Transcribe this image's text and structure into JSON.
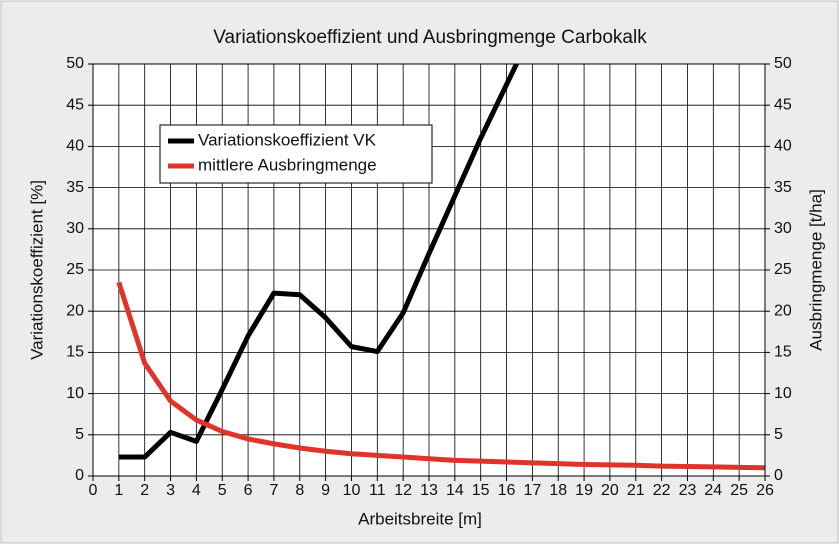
{
  "chart_data": {
    "type": "line",
    "title": "Variationskoeffizient und Ausbringmenge Carbokalk",
    "xlabel": "Arbeitsbreite [m]",
    "ylabel": "Variationskoeffizient [%]",
    "y2label": "Ausbringmenge [t/ha]",
    "x": [
      1,
      2,
      3,
      4,
      5,
      6,
      7,
      8,
      9,
      10,
      11,
      12,
      13,
      14,
      15,
      16,
      17,
      18,
      19,
      20,
      21,
      22,
      23,
      24,
      25,
      26
    ],
    "series": [
      {
        "name": "Variationskoeffizient VK",
        "color": "#000000",
        "axis": "y",
        "values": [
          2.3,
          2.3,
          5.3,
          4.2,
          10.5,
          17,
          22.2,
          22,
          19.2,
          15.7,
          15.1,
          19.8,
          27,
          34,
          41,
          47.5,
          54,
          null,
          null,
          null,
          null,
          null,
          null,
          null,
          null,
          null
        ]
      },
      {
        "name": "mittlere Ausbringmenge",
        "color": "#e0332a",
        "axis": "y2",
        "values": [
          23.5,
          13.7,
          9.1,
          6.8,
          5.4,
          4.5,
          3.9,
          3.4,
          3.0,
          2.7,
          2.5,
          2.3,
          2.1,
          1.9,
          1.8,
          1.7,
          1.6,
          1.5,
          1.4,
          1.35,
          1.3,
          1.2,
          1.15,
          1.1,
          1.05,
          1.0
        ]
      }
    ],
    "xlim": [
      0,
      26
    ],
    "xticks": [
      0,
      1,
      2,
      3,
      4,
      5,
      6,
      7,
      8,
      9,
      10,
      11,
      12,
      13,
      14,
      15,
      16,
      17,
      18,
      19,
      20,
      21,
      22,
      23,
      24,
      25,
      26
    ],
    "ylim": [
      0,
      50
    ],
    "yticks": [
      0,
      5,
      10,
      15,
      20,
      25,
      30,
      35,
      40,
      45,
      50
    ],
    "y2lim": [
      0,
      50
    ],
    "y2ticks": [
      0,
      5,
      10,
      15,
      20,
      25,
      30,
      35,
      40,
      45,
      50
    ],
    "grid": true,
    "legend": "upper left"
  }
}
